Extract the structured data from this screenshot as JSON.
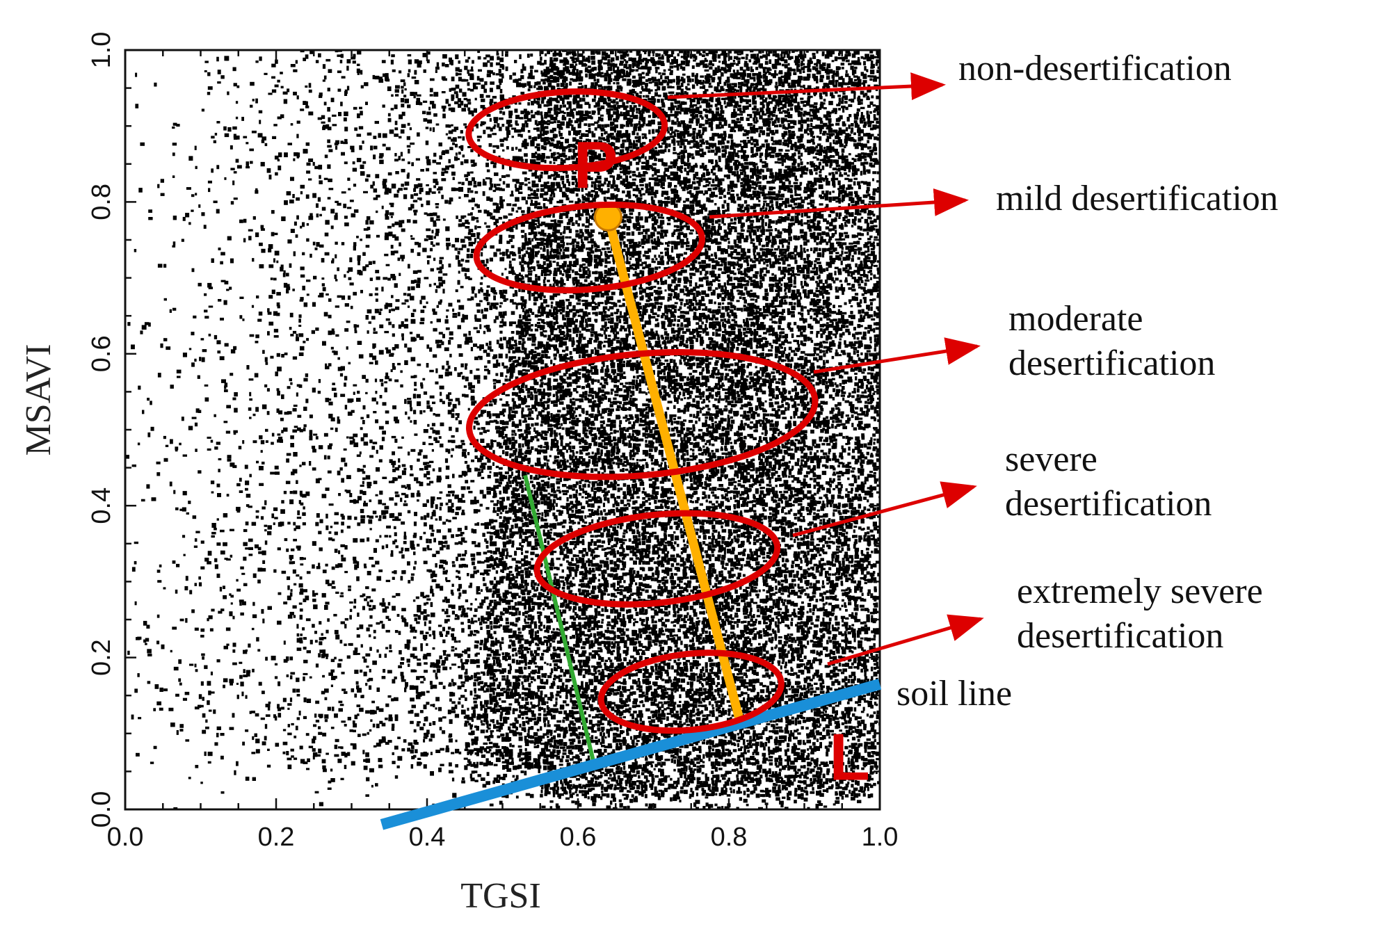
{
  "chart_data": {
    "type": "scatter",
    "title": "",
    "xlabel": "TGSI",
    "ylabel": "MSAVI",
    "xlim": [
      0.0,
      1.0
    ],
    "ylim": [
      0.0,
      1.0
    ],
    "x_ticks": [
      "0.0",
      "0.2",
      "0.4",
      "0.6",
      "0.8",
      "1.0"
    ],
    "y_ticks": [
      "0.0",
      "0.2",
      "0.4",
      "0.6",
      "0.8",
      "1.0"
    ],
    "grid": false,
    "point_color": "#000000",
    "background_color": "#ffffff",
    "description_points": "dense pixel cloud forming a feature space; sparse at low TGSI, densest at TGSI 0.5-0.85",
    "soil_line": {
      "label": "soil line",
      "color": "#1a8fd8",
      "x": [
        0.34,
        1.0
      ],
      "y": [
        -0.02,
        0.165
      ]
    },
    "vegetation_line": {
      "color": "#ffb000",
      "x": [
        0.64,
        0.815
      ],
      "y": [
        0.78,
        0.115
      ]
    },
    "green_line": {
      "color": "#33aa33",
      "x": [
        0.53,
        0.62
      ],
      "y": [
        0.44,
        0.065
      ]
    },
    "point_P": {
      "label": "P",
      "x": 0.64,
      "y": 0.78,
      "color": "#ffb000"
    },
    "point_L": {
      "label": "L",
      "x": 0.96,
      "y": 0.07
    },
    "annotation_color": "#dd0000",
    "classes": [
      {
        "lines": [
          "non-desertification"
        ],
        "cx": 0.585,
        "cy": 0.895,
        "rx": 0.13,
        "ry": 0.05,
        "rot": -3
      },
      {
        "lines": [
          "mild desertification"
        ],
        "cx": 0.615,
        "cy": 0.74,
        "rx": 0.15,
        "ry": 0.055,
        "rot": -5
      },
      {
        "lines": [
          "moderate",
          "desertification"
        ],
        "cx": 0.685,
        "cy": 0.52,
        "rx": 0.23,
        "ry": 0.08,
        "rot": -5
      },
      {
        "lines": [
          "severe",
          "desertification"
        ],
        "cx": 0.705,
        "cy": 0.33,
        "rx": 0.16,
        "ry": 0.058,
        "rot": -6
      },
      {
        "lines": [
          "extremely severe",
          "desertification"
        ],
        "cx": 0.75,
        "cy": 0.155,
        "rx": 0.12,
        "ry": 0.05,
        "rot": -6
      }
    ]
  }
}
